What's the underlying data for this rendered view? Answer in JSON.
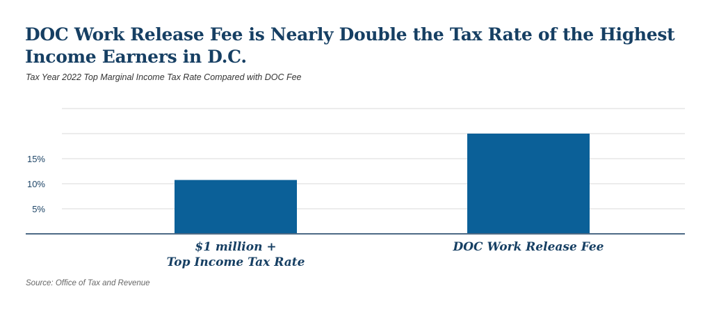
{
  "title": "DOC Work Release Fee is Nearly Double the Tax Rate of the Highest Income Earners in D.C.",
  "subtitle": "Tax Year 2022 Top Marginal Income Tax Rate Compared with DOC Fee",
  "source": "Source: Office of Tax and Revenue",
  "colors": {
    "bar": "#0b6098",
    "title": "#163f63",
    "grid": "#d9d9d9",
    "axis": "#4d6a85"
  },
  "chart_data": {
    "type": "bar",
    "categories": [
      [
        "$1 million +",
        "Top Income Tax Rate"
      ],
      [
        "DOC Work Release Fee"
      ]
    ],
    "values": [
      10.75,
      20
    ],
    "ylim": [
      0,
      25
    ],
    "yticks": [
      5,
      10,
      15,
      20,
      25
    ],
    "ytick_labels": [
      "5%",
      "10%",
      "15%",
      "",
      ""
    ],
    "grid": true,
    "xlabel": "",
    "ylabel": ""
  }
}
